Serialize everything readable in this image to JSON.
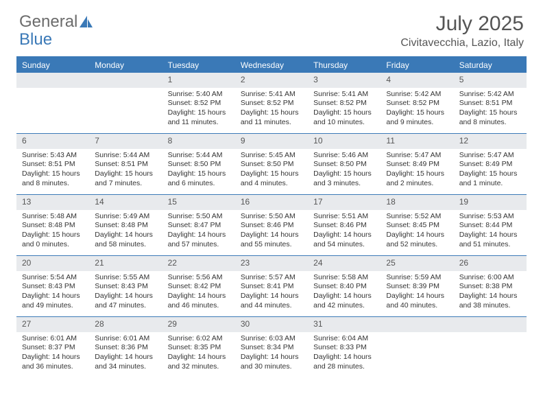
{
  "logo": {
    "text1": "General",
    "text2": "Blue"
  },
  "title": "July 2025",
  "subtitle": "Civitavecchia, Lazio, Italy",
  "colors": {
    "header_bg": "#3a79b7",
    "daynum_bg": "#e8eaed",
    "border": "#3a79b7",
    "text": "#333333",
    "title_text": "#555555"
  },
  "day_names": [
    "Sunday",
    "Monday",
    "Tuesday",
    "Wednesday",
    "Thursday",
    "Friday",
    "Saturday"
  ],
  "weeks": [
    [
      null,
      null,
      {
        "n": "1",
        "sr": "5:40 AM",
        "ss": "8:52 PM",
        "dl": "15 hours and 11 minutes."
      },
      {
        "n": "2",
        "sr": "5:41 AM",
        "ss": "8:52 PM",
        "dl": "15 hours and 11 minutes."
      },
      {
        "n": "3",
        "sr": "5:41 AM",
        "ss": "8:52 PM",
        "dl": "15 hours and 10 minutes."
      },
      {
        "n": "4",
        "sr": "5:42 AM",
        "ss": "8:52 PM",
        "dl": "15 hours and 9 minutes."
      },
      {
        "n": "5",
        "sr": "5:42 AM",
        "ss": "8:51 PM",
        "dl": "15 hours and 8 minutes."
      }
    ],
    [
      {
        "n": "6",
        "sr": "5:43 AM",
        "ss": "8:51 PM",
        "dl": "15 hours and 8 minutes."
      },
      {
        "n": "7",
        "sr": "5:44 AM",
        "ss": "8:51 PM",
        "dl": "15 hours and 7 minutes."
      },
      {
        "n": "8",
        "sr": "5:44 AM",
        "ss": "8:50 PM",
        "dl": "15 hours and 6 minutes."
      },
      {
        "n": "9",
        "sr": "5:45 AM",
        "ss": "8:50 PM",
        "dl": "15 hours and 4 minutes."
      },
      {
        "n": "10",
        "sr": "5:46 AM",
        "ss": "8:50 PM",
        "dl": "15 hours and 3 minutes."
      },
      {
        "n": "11",
        "sr": "5:47 AM",
        "ss": "8:49 PM",
        "dl": "15 hours and 2 minutes."
      },
      {
        "n": "12",
        "sr": "5:47 AM",
        "ss": "8:49 PM",
        "dl": "15 hours and 1 minute."
      }
    ],
    [
      {
        "n": "13",
        "sr": "5:48 AM",
        "ss": "8:48 PM",
        "dl": "15 hours and 0 minutes."
      },
      {
        "n": "14",
        "sr": "5:49 AM",
        "ss": "8:48 PM",
        "dl": "14 hours and 58 minutes."
      },
      {
        "n": "15",
        "sr": "5:50 AM",
        "ss": "8:47 PM",
        "dl": "14 hours and 57 minutes."
      },
      {
        "n": "16",
        "sr": "5:50 AM",
        "ss": "8:46 PM",
        "dl": "14 hours and 55 minutes."
      },
      {
        "n": "17",
        "sr": "5:51 AM",
        "ss": "8:46 PM",
        "dl": "14 hours and 54 minutes."
      },
      {
        "n": "18",
        "sr": "5:52 AM",
        "ss": "8:45 PM",
        "dl": "14 hours and 52 minutes."
      },
      {
        "n": "19",
        "sr": "5:53 AM",
        "ss": "8:44 PM",
        "dl": "14 hours and 51 minutes."
      }
    ],
    [
      {
        "n": "20",
        "sr": "5:54 AM",
        "ss": "8:43 PM",
        "dl": "14 hours and 49 minutes."
      },
      {
        "n": "21",
        "sr": "5:55 AM",
        "ss": "8:43 PM",
        "dl": "14 hours and 47 minutes."
      },
      {
        "n": "22",
        "sr": "5:56 AM",
        "ss": "8:42 PM",
        "dl": "14 hours and 46 minutes."
      },
      {
        "n": "23",
        "sr": "5:57 AM",
        "ss": "8:41 PM",
        "dl": "14 hours and 44 minutes."
      },
      {
        "n": "24",
        "sr": "5:58 AM",
        "ss": "8:40 PM",
        "dl": "14 hours and 42 minutes."
      },
      {
        "n": "25",
        "sr": "5:59 AM",
        "ss": "8:39 PM",
        "dl": "14 hours and 40 minutes."
      },
      {
        "n": "26",
        "sr": "6:00 AM",
        "ss": "8:38 PM",
        "dl": "14 hours and 38 minutes."
      }
    ],
    [
      {
        "n": "27",
        "sr": "6:01 AM",
        "ss": "8:37 PM",
        "dl": "14 hours and 36 minutes."
      },
      {
        "n": "28",
        "sr": "6:01 AM",
        "ss": "8:36 PM",
        "dl": "14 hours and 34 minutes."
      },
      {
        "n": "29",
        "sr": "6:02 AM",
        "ss": "8:35 PM",
        "dl": "14 hours and 32 minutes."
      },
      {
        "n": "30",
        "sr": "6:03 AM",
        "ss": "8:34 PM",
        "dl": "14 hours and 30 minutes."
      },
      {
        "n": "31",
        "sr": "6:04 AM",
        "ss": "8:33 PM",
        "dl": "14 hours and 28 minutes."
      },
      null,
      null
    ]
  ],
  "labels": {
    "sunrise": "Sunrise:",
    "sunset": "Sunset:",
    "daylight": "Daylight:"
  }
}
